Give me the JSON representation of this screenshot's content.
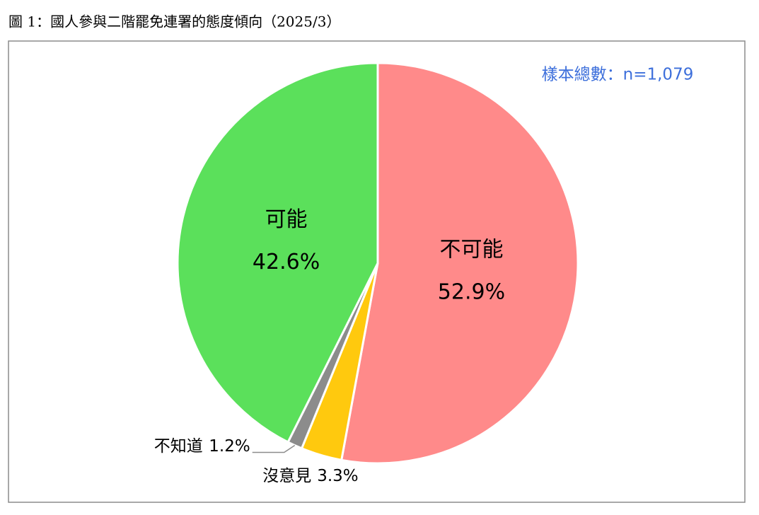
{
  "chart_data": {
    "type": "pie",
    "title": "圖 1：國人參與二階罷免連署的態度傾向（2025/3）",
    "annotation": "樣本總數：n=1,079",
    "categories": [
      "不可能",
      "沒意見",
      "不知道",
      "可能"
    ],
    "values": [
      52.9,
      3.3,
      1.2,
      42.6
    ],
    "value_labels": [
      "52.9%",
      "3.3%",
      "1.2%",
      "42.6%"
    ],
    "colors": [
      "#ff8a8a",
      "#ffc90e",
      "#8c8c8c",
      "#5be05b"
    ]
  }
}
